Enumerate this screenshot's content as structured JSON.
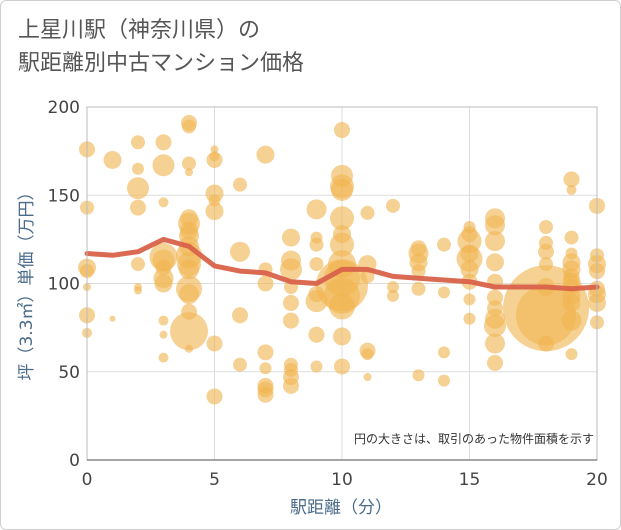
{
  "chart_data": {
    "type": "scatter",
    "title_lines": [
      "上星川駅（神奈川県）の",
      "駅距離別中古マンション価格"
    ],
    "xlabel": "駅距離（分）",
    "ylabel": "坪（3.3㎡）単価（万円）",
    "note": "円の大きさは、取引のあった物件面積を示す",
    "xlim": [
      0,
      20
    ],
    "ylim": [
      0,
      200
    ],
    "xticks": [
      0,
      5,
      10,
      15,
      20
    ],
    "yticks": [
      0,
      50,
      100,
      150,
      200
    ],
    "grid": true,
    "colors": {
      "bubble": "#f0b452",
      "line": "#d9624a",
      "grid": "#dddddd"
    },
    "trend": [
      {
        "x": 0,
        "y": 117
      },
      {
        "x": 1,
        "y": 116
      },
      {
        "x": 2,
        "y": 118
      },
      {
        "x": 3,
        "y": 125
      },
      {
        "x": 4,
        "y": 121
      },
      {
        "x": 5,
        "y": 110
      },
      {
        "x": 6,
        "y": 107
      },
      {
        "x": 7,
        "y": 106
      },
      {
        "x": 8,
        "y": 101
      },
      {
        "x": 9,
        "y": 100
      },
      {
        "x": 10,
        "y": 108
      },
      {
        "x": 11,
        "y": 108
      },
      {
        "x": 12,
        "y": 104
      },
      {
        "x": 13,
        "y": 103
      },
      {
        "x": 14,
        "y": 102
      },
      {
        "x": 15,
        "y": 101
      },
      {
        "x": 16,
        "y": 98
      },
      {
        "x": 17,
        "y": 98
      },
      {
        "x": 18,
        "y": 98
      },
      {
        "x": 19,
        "y": 97
      },
      {
        "x": 20,
        "y": 98
      }
    ],
    "points": [
      {
        "x": 0,
        "y": 176,
        "s": 8
      },
      {
        "x": 0,
        "y": 143,
        "s": 7
      },
      {
        "x": 0,
        "y": 109,
        "s": 9
      },
      {
        "x": 0,
        "y": 107,
        "s": 7
      },
      {
        "x": 0,
        "y": 98,
        "s": 4
      },
      {
        "x": 0,
        "y": 82,
        "s": 8
      },
      {
        "x": 0,
        "y": 72,
        "s": 5
      },
      {
        "x": 1,
        "y": 170,
        "s": 9
      },
      {
        "x": 1,
        "y": 80,
        "s": 3
      },
      {
        "x": 2,
        "y": 180,
        "s": 7
      },
      {
        "x": 2,
        "y": 165,
        "s": 6
      },
      {
        "x": 2,
        "y": 154,
        "s": 11
      },
      {
        "x": 2,
        "y": 143,
        "s": 8
      },
      {
        "x": 2,
        "y": 111,
        "s": 7
      },
      {
        "x": 2,
        "y": 98,
        "s": 4
      },
      {
        "x": 2,
        "y": 96,
        "s": 4
      },
      {
        "x": 3,
        "y": 180,
        "s": 8
      },
      {
        "x": 3,
        "y": 167,
        "s": 11
      },
      {
        "x": 3,
        "y": 146,
        "s": 5
      },
      {
        "x": 3,
        "y": 115,
        "s": 14
      },
      {
        "x": 3,
        "y": 113,
        "s": 11
      },
      {
        "x": 3,
        "y": 109,
        "s": 8
      },
      {
        "x": 3,
        "y": 103,
        "s": 10
      },
      {
        "x": 3,
        "y": 100,
        "s": 9
      },
      {
        "x": 3,
        "y": 79,
        "s": 5
      },
      {
        "x": 3,
        "y": 71,
        "s": 4
      },
      {
        "x": 3,
        "y": 58,
        "s": 5
      },
      {
        "x": 4,
        "y": 191,
        "s": 8
      },
      {
        "x": 4,
        "y": 189,
        "s": 7
      },
      {
        "x": 4,
        "y": 168,
        "s": 7
      },
      {
        "x": 4,
        "y": 163,
        "s": 4
      },
      {
        "x": 4,
        "y": 137,
        "s": 9
      },
      {
        "x": 4,
        "y": 134,
        "s": 11
      },
      {
        "x": 4,
        "y": 130,
        "s": 9
      },
      {
        "x": 4,
        "y": 127,
        "s": 10
      },
      {
        "x": 4,
        "y": 121,
        "s": 10
      },
      {
        "x": 4,
        "y": 116,
        "s": 13
      },
      {
        "x": 4,
        "y": 111,
        "s": 12
      },
      {
        "x": 4,
        "y": 108,
        "s": 10
      },
      {
        "x": 4,
        "y": 97,
        "s": 13
      },
      {
        "x": 4,
        "y": 94,
        "s": 10
      },
      {
        "x": 4,
        "y": 84,
        "s": 8
      },
      {
        "x": 4,
        "y": 73,
        "s": 19
      },
      {
        "x": 4,
        "y": 63,
        "s": 4
      },
      {
        "x": 5,
        "y": 176,
        "s": 4
      },
      {
        "x": 5,
        "y": 172,
        "s": 5
      },
      {
        "x": 5,
        "y": 170,
        "s": 8
      },
      {
        "x": 5,
        "y": 151,
        "s": 9
      },
      {
        "x": 5,
        "y": 147,
        "s": 6
      },
      {
        "x": 5,
        "y": 141,
        "s": 9
      },
      {
        "x": 5,
        "y": 66,
        "s": 8
      },
      {
        "x": 5,
        "y": 36,
        "s": 8
      },
      {
        "x": 6,
        "y": 156,
        "s": 7
      },
      {
        "x": 6,
        "y": 118,
        "s": 10
      },
      {
        "x": 6,
        "y": 82,
        "s": 8
      },
      {
        "x": 6,
        "y": 54,
        "s": 7
      },
      {
        "x": 7,
        "y": 173,
        "s": 9
      },
      {
        "x": 7,
        "y": 108,
        "s": 7
      },
      {
        "x": 7,
        "y": 100,
        "s": 8
      },
      {
        "x": 7,
        "y": 61,
        "s": 8
      },
      {
        "x": 7,
        "y": 52,
        "s": 6
      },
      {
        "x": 7,
        "y": 42,
        "s": 8
      },
      {
        "x": 7,
        "y": 40,
        "s": 8
      },
      {
        "x": 7,
        "y": 37,
        "s": 8
      },
      {
        "x": 8,
        "y": 126,
        "s": 9
      },
      {
        "x": 8,
        "y": 113,
        "s": 10
      },
      {
        "x": 8,
        "y": 108,
        "s": 11
      },
      {
        "x": 8,
        "y": 98,
        "s": 7
      },
      {
        "x": 8,
        "y": 89,
        "s": 8
      },
      {
        "x": 8,
        "y": 79,
        "s": 8
      },
      {
        "x": 8,
        "y": 54,
        "s": 7
      },
      {
        "x": 8,
        "y": 51,
        "s": 7
      },
      {
        "x": 8,
        "y": 47,
        "s": 8
      },
      {
        "x": 8,
        "y": 42,
        "s": 8
      },
      {
        "x": 9,
        "y": 142,
        "s": 10
      },
      {
        "x": 9,
        "y": 126,
        "s": 6
      },
      {
        "x": 9,
        "y": 122,
        "s": 7
      },
      {
        "x": 9,
        "y": 111,
        "s": 7
      },
      {
        "x": 9,
        "y": 94,
        "s": 8
      },
      {
        "x": 9,
        "y": 90,
        "s": 11
      },
      {
        "x": 9,
        "y": 71,
        "s": 8
      },
      {
        "x": 9,
        "y": 53,
        "s": 6
      },
      {
        "x": 10,
        "y": 187,
        "s": 8
      },
      {
        "x": 10,
        "y": 161,
        "s": 11
      },
      {
        "x": 10,
        "y": 155,
        "s": 12
      },
      {
        "x": 10,
        "y": 153,
        "s": 11
      },
      {
        "x": 10,
        "y": 137,
        "s": 12
      },
      {
        "x": 10,
        "y": 128,
        "s": 9
      },
      {
        "x": 10,
        "y": 122,
        "s": 12
      },
      {
        "x": 10,
        "y": 111,
        "s": 14
      },
      {
        "x": 10,
        "y": 103,
        "s": 18
      },
      {
        "x": 10,
        "y": 99,
        "s": 26
      },
      {
        "x": 10,
        "y": 93,
        "s": 18
      },
      {
        "x": 10,
        "y": 87,
        "s": 13
      },
      {
        "x": 10,
        "y": 70,
        "s": 9
      },
      {
        "x": 10,
        "y": 53,
        "s": 8
      },
      {
        "x": 11,
        "y": 140,
        "s": 7
      },
      {
        "x": 11,
        "y": 111,
        "s": 9
      },
      {
        "x": 11,
        "y": 104,
        "s": 7
      },
      {
        "x": 11,
        "y": 62,
        "s": 8
      },
      {
        "x": 11,
        "y": 60,
        "s": 6
      },
      {
        "x": 11,
        "y": 47,
        "s": 4
      },
      {
        "x": 12,
        "y": 144,
        "s": 7
      },
      {
        "x": 12,
        "y": 98,
        "s": 6
      },
      {
        "x": 12,
        "y": 93,
        "s": 6
      },
      {
        "x": 13,
        "y": 120,
        "s": 8
      },
      {
        "x": 13,
        "y": 117,
        "s": 10
      },
      {
        "x": 13,
        "y": 112,
        "s": 9
      },
      {
        "x": 13,
        "y": 107,
        "s": 7
      },
      {
        "x": 13,
        "y": 97,
        "s": 7
      },
      {
        "x": 13,
        "y": 48,
        "s": 6
      },
      {
        "x": 14,
        "y": 122,
        "s": 7
      },
      {
        "x": 14,
        "y": 95,
        "s": 6
      },
      {
        "x": 14,
        "y": 61,
        "s": 6
      },
      {
        "x": 14,
        "y": 45,
        "s": 6
      },
      {
        "x": 15,
        "y": 132,
        "s": 6
      },
      {
        "x": 15,
        "y": 128,
        "s": 8
      },
      {
        "x": 15,
        "y": 124,
        "s": 12
      },
      {
        "x": 15,
        "y": 117,
        "s": 9
      },
      {
        "x": 15,
        "y": 114,
        "s": 13
      },
      {
        "x": 15,
        "y": 108,
        "s": 9
      },
      {
        "x": 15,
        "y": 101,
        "s": 8
      },
      {
        "x": 15,
        "y": 91,
        "s": 6
      },
      {
        "x": 15,
        "y": 80,
        "s": 6
      },
      {
        "x": 16,
        "y": 137,
        "s": 10
      },
      {
        "x": 16,
        "y": 133,
        "s": 10
      },
      {
        "x": 16,
        "y": 124,
        "s": 10
      },
      {
        "x": 16,
        "y": 112,
        "s": 9
      },
      {
        "x": 16,
        "y": 101,
        "s": 8
      },
      {
        "x": 16,
        "y": 92,
        "s": 8
      },
      {
        "x": 16,
        "y": 86,
        "s": 8
      },
      {
        "x": 16,
        "y": 80,
        "s": 10
      },
      {
        "x": 16,
        "y": 76,
        "s": 11
      },
      {
        "x": 16,
        "y": 66,
        "s": 10
      },
      {
        "x": 16,
        "y": 55,
        "s": 8
      },
      {
        "x": 18,
        "y": 132,
        "s": 7
      },
      {
        "x": 18,
        "y": 123,
        "s": 7
      },
      {
        "x": 18,
        "y": 118,
        "s": 8
      },
      {
        "x": 18,
        "y": 111,
        "s": 7
      },
      {
        "x": 18,
        "y": 98,
        "s": 9
      },
      {
        "x": 18,
        "y": 86,
        "s": 43
      },
      {
        "x": 18,
        "y": 82,
        "s": 30
      },
      {
        "x": 18,
        "y": 66,
        "s": 8
      },
      {
        "x": 19,
        "y": 159,
        "s": 8
      },
      {
        "x": 19,
        "y": 153,
        "s": 5
      },
      {
        "x": 19,
        "y": 126,
        "s": 7
      },
      {
        "x": 19,
        "y": 117,
        "s": 6
      },
      {
        "x": 19,
        "y": 112,
        "s": 9
      },
      {
        "x": 19,
        "y": 108,
        "s": 9
      },
      {
        "x": 19,
        "y": 104,
        "s": 8
      },
      {
        "x": 19,
        "y": 101,
        "s": 9
      },
      {
        "x": 19,
        "y": 98,
        "s": 8
      },
      {
        "x": 19,
        "y": 93,
        "s": 9
      },
      {
        "x": 19,
        "y": 89,
        "s": 9
      },
      {
        "x": 19,
        "y": 79,
        "s": 10
      },
      {
        "x": 19,
        "y": 60,
        "s": 6
      },
      {
        "x": 20,
        "y": 144,
        "s": 8
      },
      {
        "x": 20,
        "y": 116,
        "s": 7
      },
      {
        "x": 20,
        "y": 111,
        "s": 9
      },
      {
        "x": 20,
        "y": 107,
        "s": 8
      },
      {
        "x": 20,
        "y": 97,
        "s": 8
      },
      {
        "x": 20,
        "y": 94,
        "s": 9
      },
      {
        "x": 20,
        "y": 89,
        "s": 9
      },
      {
        "x": 20,
        "y": 78,
        "s": 7
      }
    ]
  }
}
